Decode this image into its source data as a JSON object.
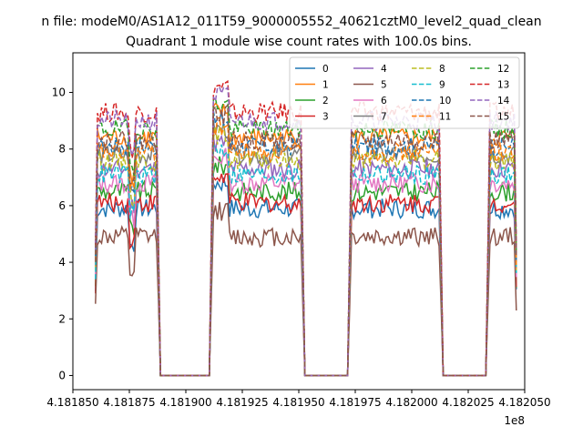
{
  "chart_data": {
    "type": "line",
    "suptitle": "n file: modeM0/AS1A12_011T59_9000005552_40621cztM0_level2_quad_clean",
    "title": "Quadrant 1 module wise count rates with 100.0s bins.",
    "xlabel": "",
    "ylabel": "",
    "x_offset_label": "1e8",
    "xlim": [
      4.18185,
      4.18205
    ],
    "ylim": [
      -0.5,
      11.4
    ],
    "x_ticks": [
      4.18185,
      4.181875,
      4.1819,
      4.181925,
      4.18195,
      4.181975,
      4.182,
      4.182025,
      4.18205
    ],
    "x_tick_labels": [
      "4.181850",
      "4.181875",
      "4.181900",
      "4.181925",
      "4.181950",
      "4.181975",
      "4.182000",
      "4.182025",
      "4.182050"
    ],
    "y_ticks": [
      0,
      2,
      4,
      6,
      8,
      10
    ],
    "y_tick_labels": [
      "0",
      "2",
      "4",
      "6",
      "8",
      "10"
    ],
    "bin_seconds": 100,
    "active_segments": [
      [
        4.18186,
        4.181888
      ],
      [
        4.181911,
        4.181952
      ],
      [
        4.181972,
        4.182013
      ],
      [
        4.182033,
        4.182047
      ]
    ],
    "gap_value": 0,
    "grid": false,
    "legend_position": "top-right",
    "legend_columns": 4,
    "series": [
      {
        "name": "0",
        "level": 5.9,
        "color": "#1f77b4",
        "dash": "solid"
      },
      {
        "name": "1",
        "level": 8.4,
        "color": "#ff7f0e",
        "dash": "solid"
      },
      {
        "name": "2",
        "level": 6.5,
        "color": "#2ca02c",
        "dash": "solid"
      },
      {
        "name": "3",
        "level": 6.1,
        "color": "#d62728",
        "dash": "solid"
      },
      {
        "name": "4",
        "level": 7.3,
        "color": "#9467bd",
        "dash": "solid"
      },
      {
        "name": "5",
        "level": 4.9,
        "color": "#8c564b",
        "dash": "solid"
      },
      {
        "name": "6",
        "level": 6.8,
        "color": "#e377c2",
        "dash": "solid"
      },
      {
        "name": "7",
        "level": 7.8,
        "color": "#7f7f7f",
        "dash": "solid"
      },
      {
        "name": "8",
        "level": 7.6,
        "color": "#bcbd22",
        "dash": "dashed"
      },
      {
        "name": "9",
        "level": 7.1,
        "color": "#17becf",
        "dash": "dashed"
      },
      {
        "name": "10",
        "level": 8.1,
        "color": "#1f77b4",
        "dash": "dashed"
      },
      {
        "name": "11",
        "level": 7.9,
        "color": "#ff7f0e",
        "dash": "dashed"
      },
      {
        "name": "12",
        "level": 8.7,
        "color": "#2ca02c",
        "dash": "dashed"
      },
      {
        "name": "13",
        "level": 9.3,
        "color": "#d62728",
        "dash": "dashed"
      },
      {
        "name": "14",
        "level": 9.0,
        "color": "#9467bd",
        "dash": "dashed"
      },
      {
        "name": "15",
        "level": 8.3,
        "color": "#8c564b",
        "dash": "dashed"
      }
    ]
  }
}
